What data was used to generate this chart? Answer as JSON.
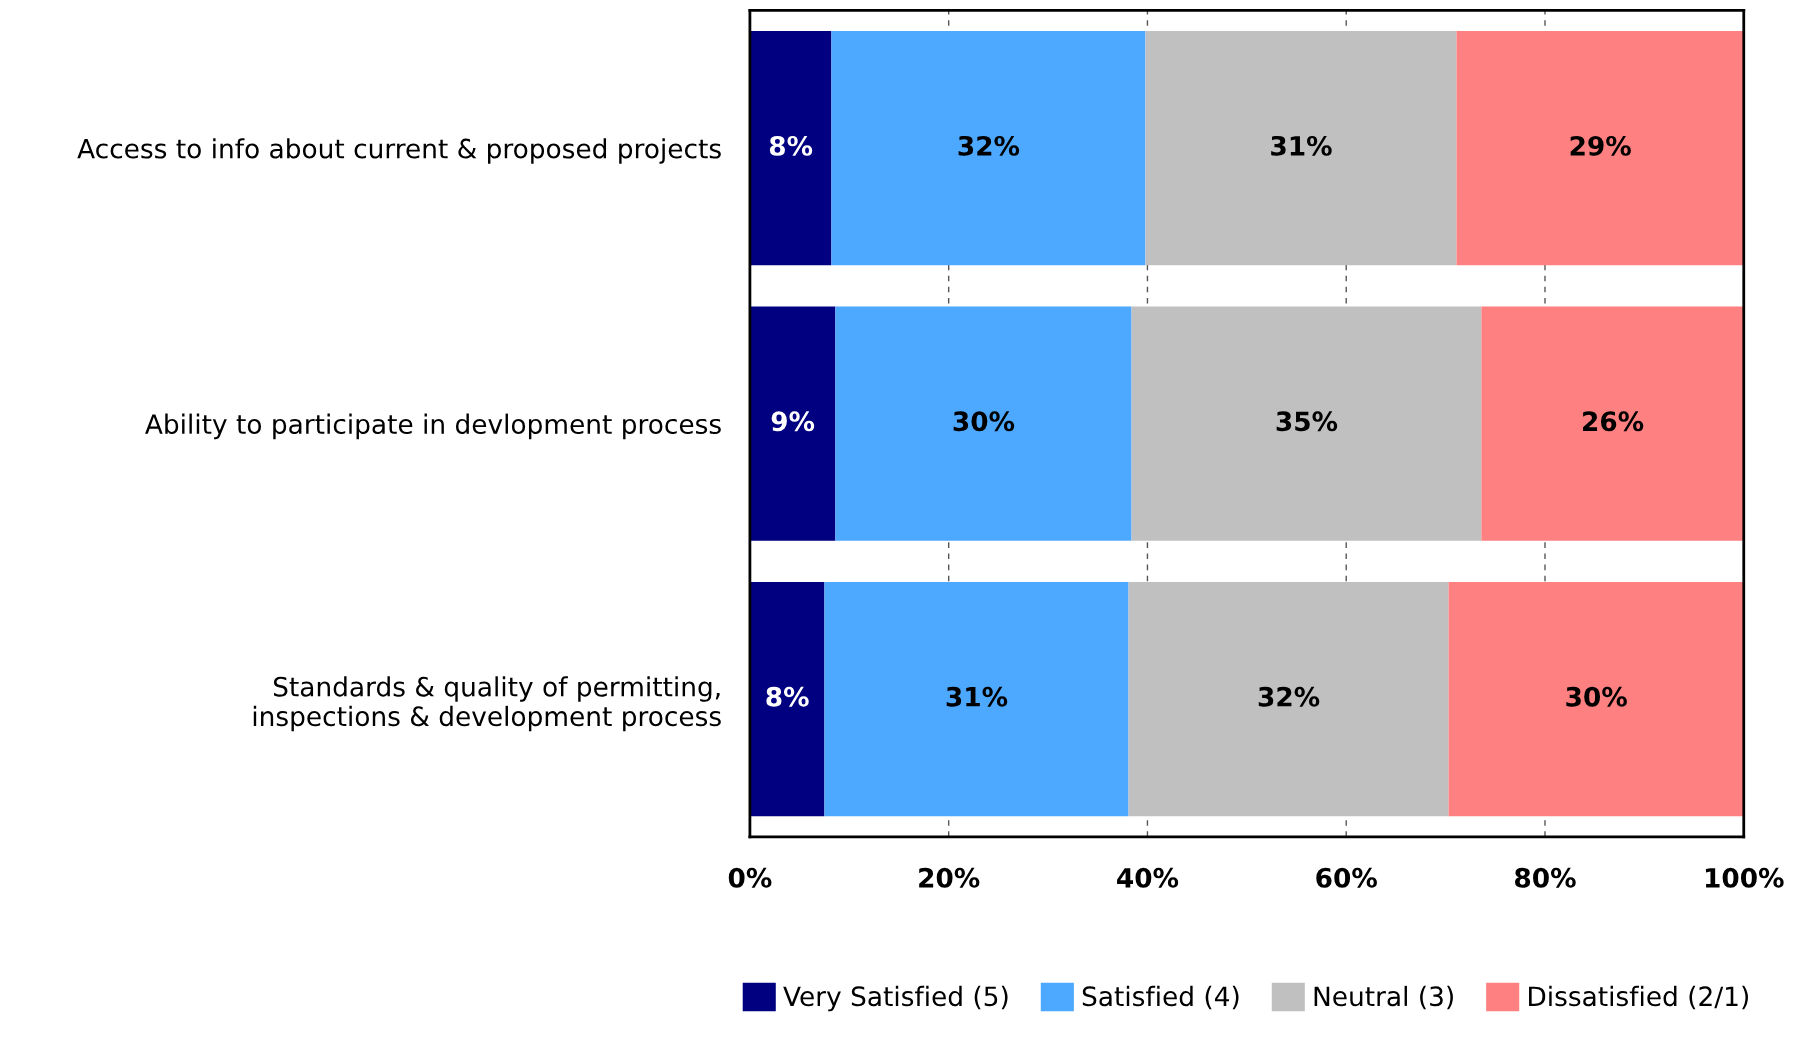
{
  "chart_data": {
    "type": "bar",
    "orientation": "horizontal",
    "stacked": true,
    "categories": [
      "Access to info about current & proposed projects",
      "Ability to participate in devlopment process",
      "Standards & quality of permitting, inspections & development process"
    ],
    "series": [
      {
        "name": "Very Satisfied (5)",
        "color": "#000080",
        "values": [
          8.2,
          8.6,
          7.5
        ],
        "value_labels": [
          "8%",
          "9%",
          "8%"
        ]
      },
      {
        "name": "Satisfied (4)",
        "color": "#4da9ff",
        "values": [
          31.6,
          29.8,
          30.6
        ],
        "value_labels": [
          "32%",
          "30%",
          "31%"
        ]
      },
      {
        "name": "Neutral (3)",
        "color": "#c0c0c0",
        "values": [
          31.3,
          35.2,
          32.2
        ],
        "value_labels": [
          "31%",
          "35%",
          "32%"
        ]
      },
      {
        "name": "Dissatisfied (2/1)",
        "color": "#ff8080",
        "values": [
          28.9,
          26.4,
          29.7
        ],
        "value_labels": [
          "29%",
          "26%",
          "30%"
        ]
      }
    ],
    "xlim": [
      0,
      100
    ],
    "xticks": [
      {
        "value": 0,
        "label": "0%"
      },
      {
        "value": 20,
        "label": "20%"
      },
      {
        "value": 40,
        "label": "40%"
      },
      {
        "value": 60,
        "label": "60%"
      },
      {
        "value": 80,
        "label": "80%"
      },
      {
        "value": 100,
        "label": "100%"
      }
    ],
    "grid": "x",
    "legend": "bottom"
  }
}
